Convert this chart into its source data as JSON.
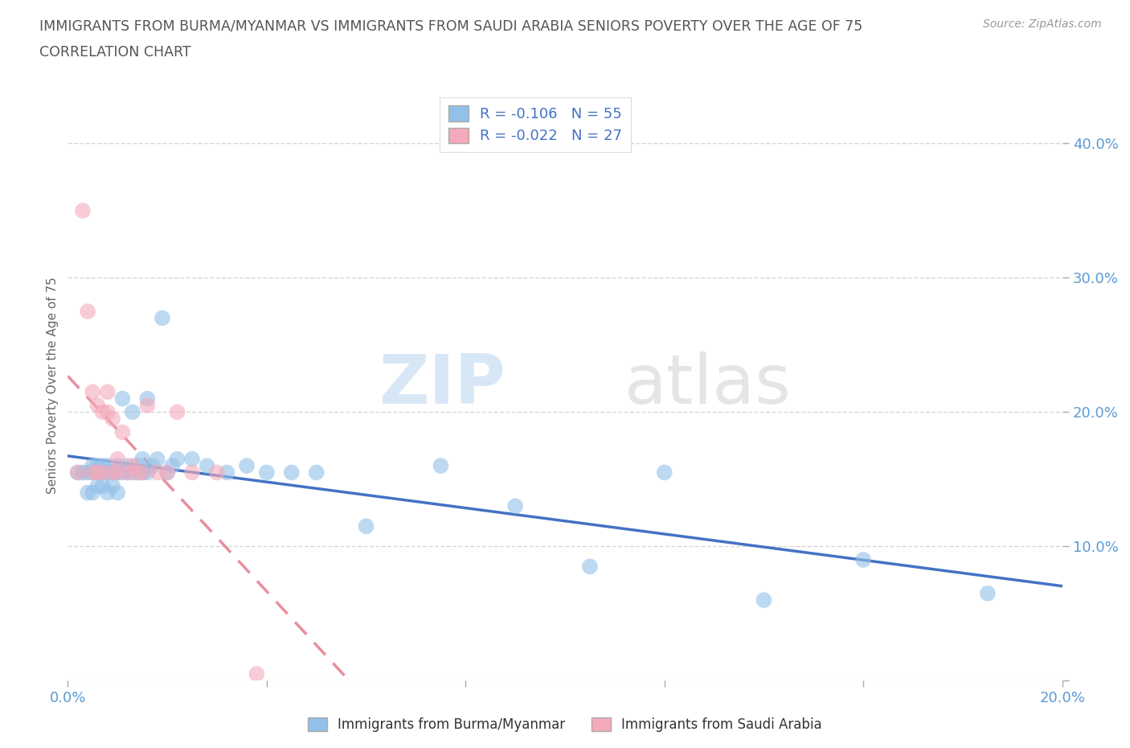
{
  "title_line1": "IMMIGRANTS FROM BURMA/MYANMAR VS IMMIGRANTS FROM SAUDI ARABIA SENIORS POVERTY OVER THE AGE OF 75",
  "title_line2": "CORRELATION CHART",
  "source": "Source: ZipAtlas.com",
  "watermark_zip": "ZIP",
  "watermark_atlas": "atlas",
  "xlabel": "",
  "ylabel": "Seniors Poverty Over the Age of 75",
  "xlim": [
    0.0,
    0.2
  ],
  "ylim": [
    0.0,
    0.44
  ],
  "legend_r_burma": "-0.106",
  "legend_n_burma": "55",
  "legend_r_saudi": "-0.022",
  "legend_n_saudi": "27",
  "color_burma": "#92C0E8",
  "color_saudi": "#F4AABB",
  "trendline_burma_color": "#4472C4",
  "trendline_saudi_color": "#E88FA0",
  "burma_x": [
    0.002,
    0.003,
    0.004,
    0.004,
    0.005,
    0.005,
    0.005,
    0.006,
    0.006,
    0.006,
    0.007,
    0.007,
    0.007,
    0.008,
    0.008,
    0.008,
    0.009,
    0.009,
    0.009,
    0.01,
    0.01,
    0.01,
    0.011,
    0.011,
    0.012,
    0.012,
    0.013,
    0.013,
    0.014,
    0.014,
    0.015,
    0.015,
    0.016,
    0.016,
    0.017,
    0.018,
    0.019,
    0.02,
    0.021,
    0.022,
    0.025,
    0.028,
    0.032,
    0.036,
    0.04,
    0.045,
    0.05,
    0.06,
    0.075,
    0.09,
    0.105,
    0.12,
    0.14,
    0.16,
    0.185
  ],
  "burma_y": [
    0.155,
    0.155,
    0.14,
    0.155,
    0.14,
    0.155,
    0.16,
    0.145,
    0.155,
    0.16,
    0.145,
    0.155,
    0.16,
    0.14,
    0.155,
    0.16,
    0.145,
    0.155,
    0.155,
    0.14,
    0.155,
    0.16,
    0.155,
    0.21,
    0.155,
    0.16,
    0.2,
    0.155,
    0.155,
    0.16,
    0.155,
    0.165,
    0.155,
    0.21,
    0.16,
    0.165,
    0.27,
    0.155,
    0.16,
    0.165,
    0.165,
    0.16,
    0.155,
    0.16,
    0.155,
    0.155,
    0.155,
    0.115,
    0.16,
    0.13,
    0.085,
    0.155,
    0.06,
    0.09,
    0.065
  ],
  "saudi_x": [
    0.002,
    0.003,
    0.004,
    0.005,
    0.005,
    0.006,
    0.006,
    0.007,
    0.007,
    0.008,
    0.008,
    0.009,
    0.009,
    0.01,
    0.01,
    0.011,
    0.012,
    0.013,
    0.014,
    0.015,
    0.016,
    0.018,
    0.02,
    0.022,
    0.025,
    0.03,
    0.038
  ],
  "saudi_y": [
    0.155,
    0.35,
    0.275,
    0.155,
    0.215,
    0.205,
    0.155,
    0.2,
    0.155,
    0.2,
    0.215,
    0.155,
    0.195,
    0.165,
    0.155,
    0.185,
    0.155,
    0.16,
    0.155,
    0.155,
    0.205,
    0.155,
    0.155,
    0.2,
    0.155,
    0.155,
    0.005
  ],
  "background_color": "#FFFFFF",
  "grid_color": "#CCCCCC",
  "title_color": "#555555",
  "axis_color": "#5B9BD5"
}
